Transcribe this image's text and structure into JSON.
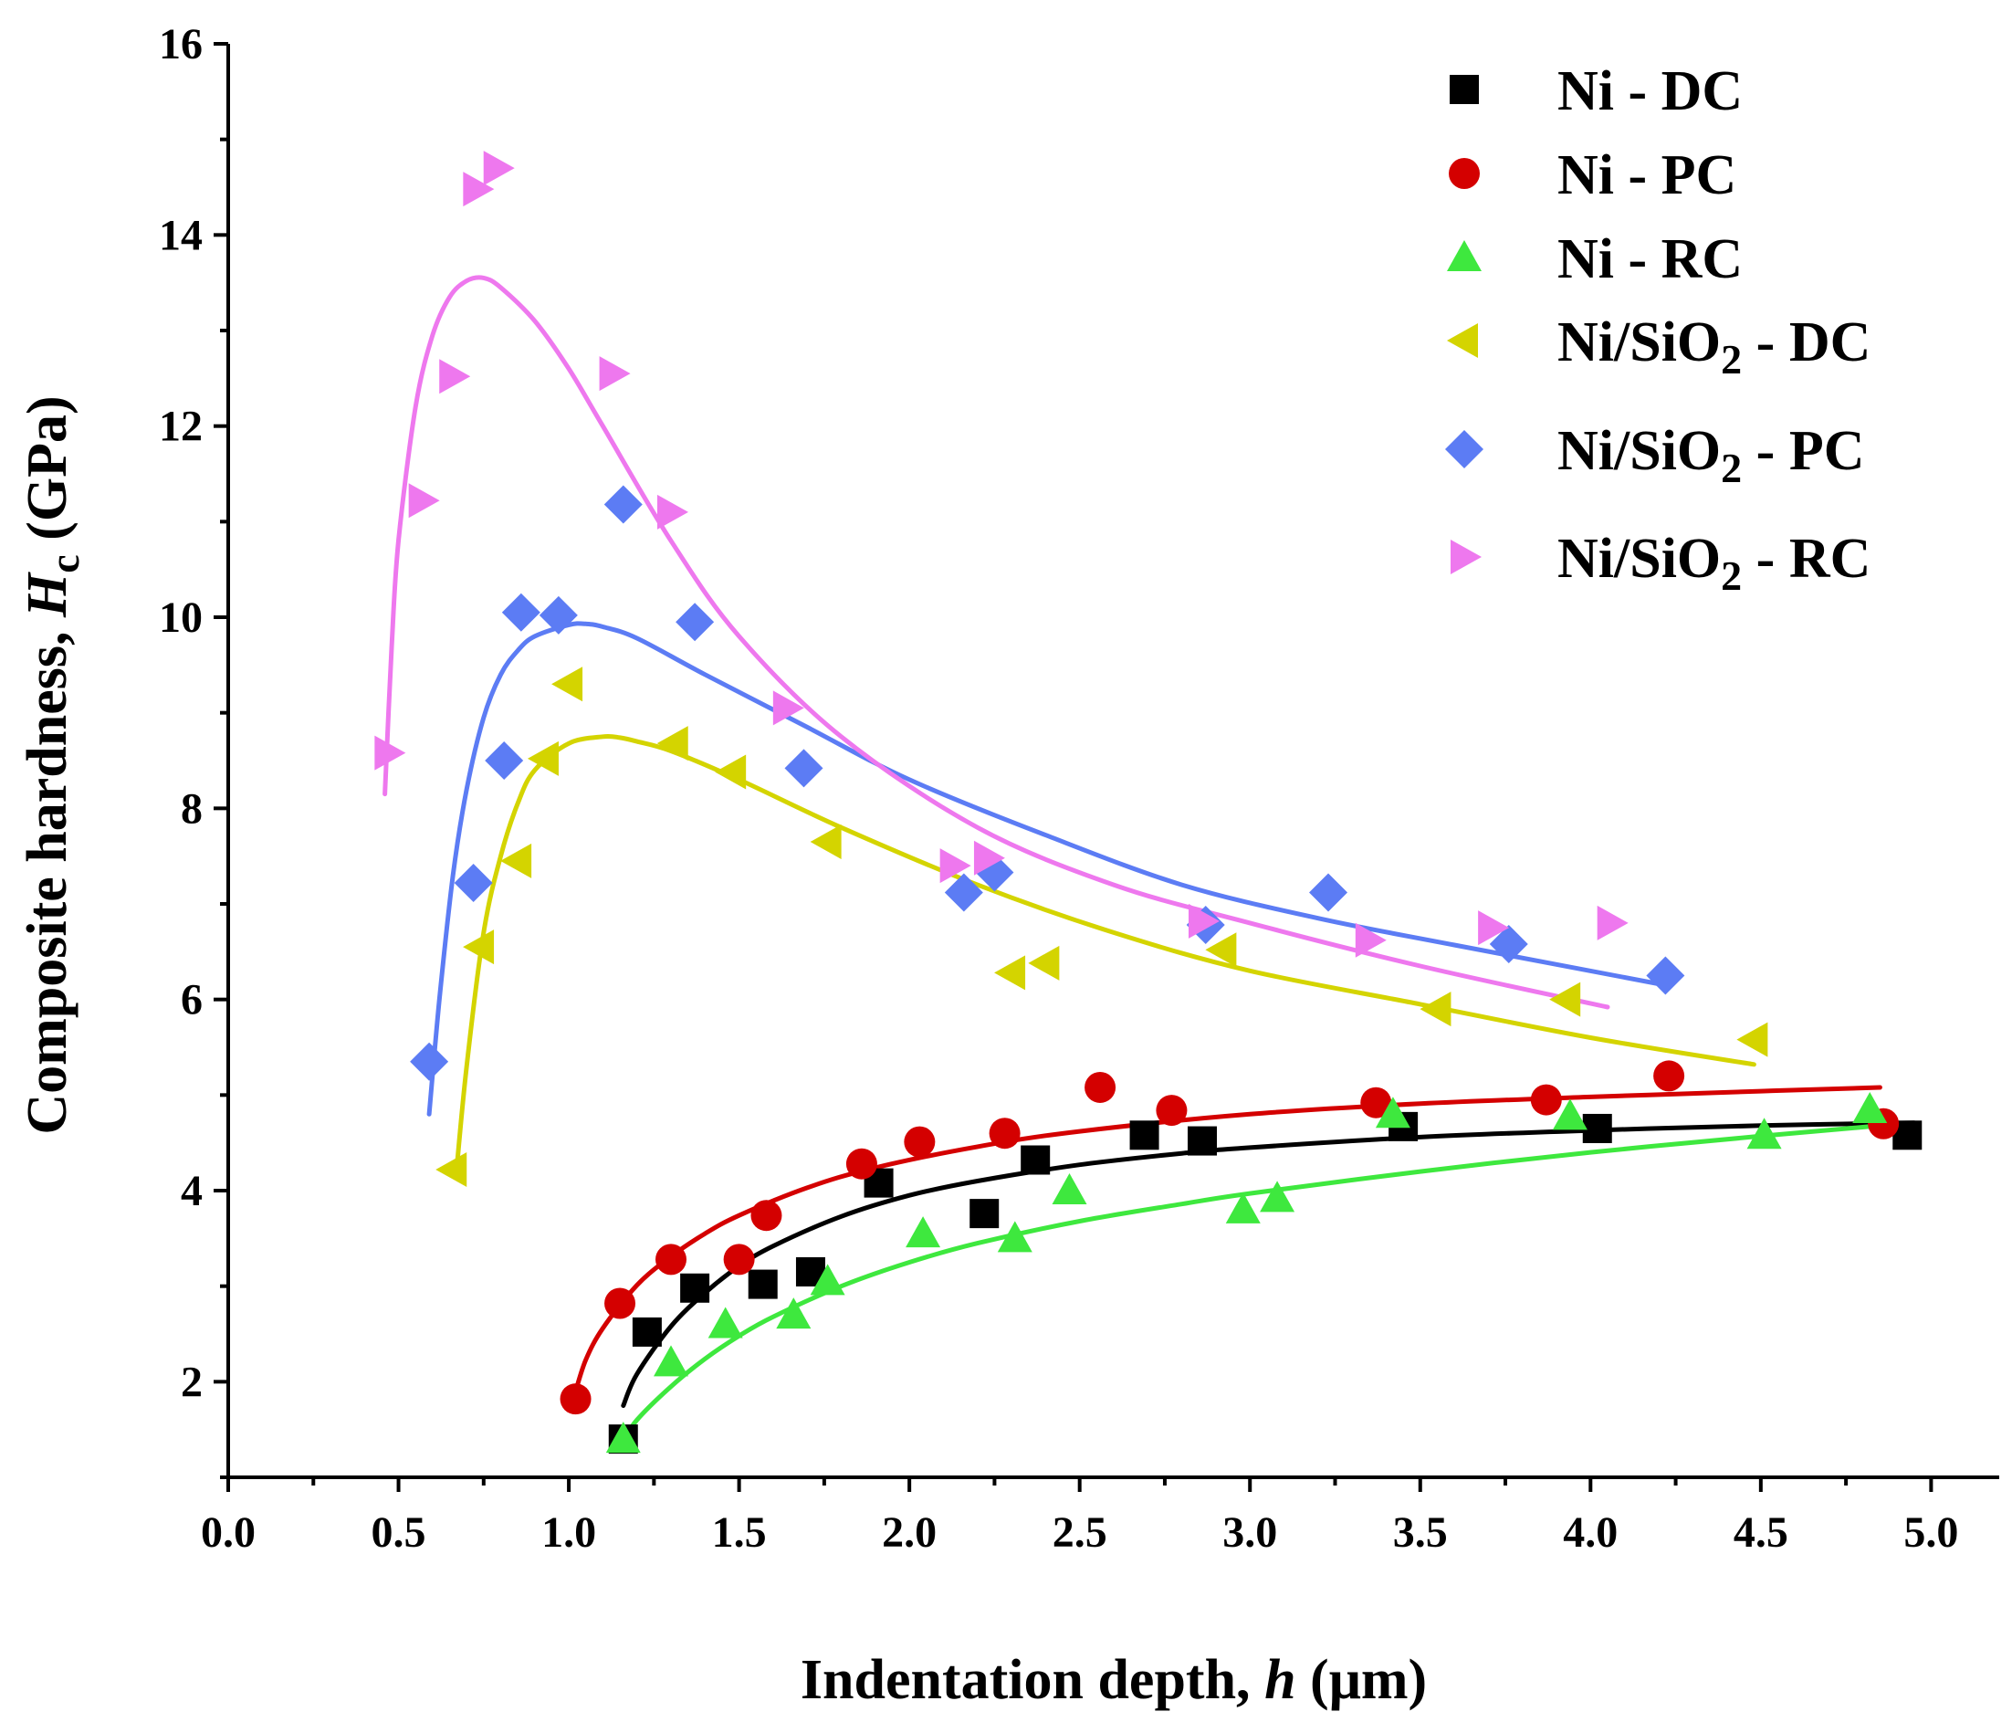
{
  "chart_data": {
    "type": "scatter",
    "title": "",
    "xlabel": "Indentation depth, h (μm)",
    "ylabel": "Composite hardness, H_c (GPa)",
    "xlim": [
      0.0,
      5.2
    ],
    "ylim": [
      1.0,
      16.0
    ],
    "x_ticks": [
      "0.0",
      "0.5",
      "1.0",
      "1.5",
      "2.0",
      "2.5",
      "3.0",
      "3.5",
      "4.0",
      "4.5",
      "5.0"
    ],
    "y_ticks": [
      "2",
      "4",
      "6",
      "8",
      "10",
      "12",
      "14",
      "16"
    ],
    "grid": false,
    "legend_position": "top-right",
    "series": [
      {
        "name": "Ni - DC",
        "marker": "square",
        "color": "#000000",
        "x": [
          1.16,
          1.23,
          1.37,
          1.57,
          1.71,
          1.91,
          2.22,
          2.37,
          2.69,
          2.86,
          3.45,
          4.02,
          4.93
        ],
        "y": [
          1.4,
          2.52,
          2.98,
          3.02,
          3.15,
          4.08,
          3.76,
          4.32,
          4.58,
          4.52,
          4.67,
          4.65,
          4.58
        ],
        "fit_x": [
          1.16,
          1.2,
          1.3,
          1.4,
          1.5,
          1.6,
          1.8,
          2.0,
          2.2,
          2.5,
          2.8,
          3.0,
          3.5,
          4.0,
          4.5,
          4.95
        ],
        "fit_y": [
          1.75,
          2.08,
          2.58,
          2.93,
          3.21,
          3.42,
          3.73,
          3.95,
          4.1,
          4.27,
          4.39,
          4.45,
          4.56,
          4.63,
          4.68,
          4.71
        ]
      },
      {
        "name": "Ni - PC",
        "marker": "circle",
        "color": "#d40000",
        "x": [
          1.02,
          1.15,
          1.3,
          1.5,
          1.58,
          1.86,
          2.03,
          2.28,
          2.56,
          2.77,
          3.37,
          3.87,
          4.23,
          4.86
        ],
        "y": [
          1.82,
          2.82,
          3.28,
          3.28,
          3.74,
          4.28,
          4.51,
          4.6,
          5.08,
          4.84,
          4.92,
          4.95,
          5.2,
          4.7
        ],
        "fit_x": [
          1.02,
          1.05,
          1.1,
          1.2,
          1.3,
          1.4,
          1.5,
          1.7,
          1.9,
          2.2,
          2.5,
          3.0,
          3.5,
          4.0,
          4.5,
          4.85
        ],
        "fit_y": [
          1.9,
          2.23,
          2.56,
          3.01,
          3.31,
          3.55,
          3.74,
          4.03,
          4.24,
          4.46,
          4.62,
          4.8,
          4.91,
          4.98,
          5.04,
          5.08
        ]
      },
      {
        "name": "Ni - RC",
        "marker": "triangle-up",
        "color": "#3ee83e",
        "x": [
          1.16,
          1.3,
          1.46,
          1.66,
          1.76,
          2.04,
          2.31,
          2.47,
          2.98,
          3.08,
          3.42,
          3.94,
          4.51,
          4.82
        ],
        "y": [
          1.4,
          2.2,
          2.6,
          2.7,
          3.05,
          3.55,
          3.5,
          4.0,
          3.8,
          3.92,
          4.8,
          4.78,
          4.58,
          4.85
        ],
        "fit_x": [
          1.16,
          1.2,
          1.3,
          1.4,
          1.5,
          1.6,
          1.8,
          2.0,
          2.2,
          2.5,
          2.8,
          3.0,
          3.5,
          4.0,
          4.5,
          4.85
        ],
        "fit_y": [
          1.38,
          1.6,
          1.95,
          2.24,
          2.48,
          2.68,
          3.0,
          3.25,
          3.45,
          3.68,
          3.86,
          3.97,
          4.2,
          4.4,
          4.57,
          4.68
        ]
      },
      {
        "name": "Ni/SiO2 - DC",
        "marker": "triangle-left",
        "color": "#d4d400",
        "x": [
          0.66,
          0.74,
          0.85,
          0.93,
          1.0,
          1.31,
          1.48,
          1.76,
          2.3,
          2.4,
          2.92,
          3.55,
          3.93,
          4.48
        ],
        "y": [
          4.22,
          6.55,
          7.45,
          8.52,
          9.3,
          8.68,
          8.38,
          7.65,
          6.28,
          6.38,
          6.52,
          5.9,
          6.0,
          5.58
        ],
        "fit_x": [
          0.67,
          0.7,
          0.75,
          0.8,
          0.85,
          0.9,
          1.0,
          1.1,
          1.15,
          1.2,
          1.3,
          1.5,
          1.8,
          2.2,
          2.6,
          3.0,
          3.5,
          4.0,
          4.48
        ],
        "fit_y": [
          4.2,
          5.3,
          6.7,
          7.5,
          8.05,
          8.4,
          8.68,
          8.75,
          8.74,
          8.7,
          8.6,
          8.3,
          7.8,
          7.2,
          6.7,
          6.3,
          5.95,
          5.6,
          5.32
        ]
      },
      {
        "name": "Ni/SiO2 - PC",
        "marker": "diamond",
        "color": "#5c7cf4",
        "x": [
          0.59,
          0.72,
          0.81,
          0.86,
          0.97,
          1.16,
          1.37,
          1.69,
          2.16,
          2.25,
          2.87,
          3.23,
          3.76,
          4.22
        ],
        "y": [
          5.35,
          7.22,
          8.5,
          10.05,
          10.02,
          11.18,
          9.95,
          8.42,
          7.12,
          7.33,
          6.78,
          7.12,
          6.58,
          6.25
        ],
        "fit_x": [
          0.59,
          0.62,
          0.66,
          0.7,
          0.75,
          0.8,
          0.85,
          0.9,
          1.0,
          1.05,
          1.1,
          1.2,
          1.4,
          1.7,
          2.0,
          2.4,
          2.8,
          3.2,
          3.6,
          4.22
        ],
        "fit_y": [
          4.8,
          6.0,
          7.3,
          8.2,
          8.95,
          9.4,
          9.65,
          9.8,
          9.92,
          9.93,
          9.9,
          9.78,
          9.4,
          8.85,
          8.3,
          7.72,
          7.2,
          6.85,
          6.57,
          6.15
        ]
      },
      {
        "name": "Ni/SiO2 - RC",
        "marker": "triangle-right",
        "color": "#ee78ee",
        "x": [
          0.47,
          0.57,
          0.66,
          0.73,
          0.79,
          1.13,
          1.3,
          1.64,
          2.13,
          2.23,
          2.86,
          3.35,
          3.71,
          4.06
        ],
        "y": [
          8.58,
          11.22,
          12.52,
          14.48,
          14.7,
          12.55,
          11.1,
          9.05,
          7.4,
          7.48,
          6.82,
          6.62,
          6.75,
          6.8
        ],
        "fit_x": [
          0.46,
          0.48,
          0.5,
          0.55,
          0.6,
          0.65,
          0.7,
          0.75,
          0.8,
          0.9,
          1.0,
          1.1,
          1.3,
          1.5,
          1.8,
          2.2,
          2.6,
          3.0,
          3.5,
          4.05
        ],
        "fit_y": [
          8.15,
          9.7,
          10.8,
          12.2,
          12.95,
          13.35,
          13.52,
          13.55,
          13.45,
          13.1,
          12.6,
          12.0,
          10.8,
          9.8,
          8.75,
          7.8,
          7.2,
          6.8,
          6.35,
          5.92
        ]
      }
    ]
  }
}
